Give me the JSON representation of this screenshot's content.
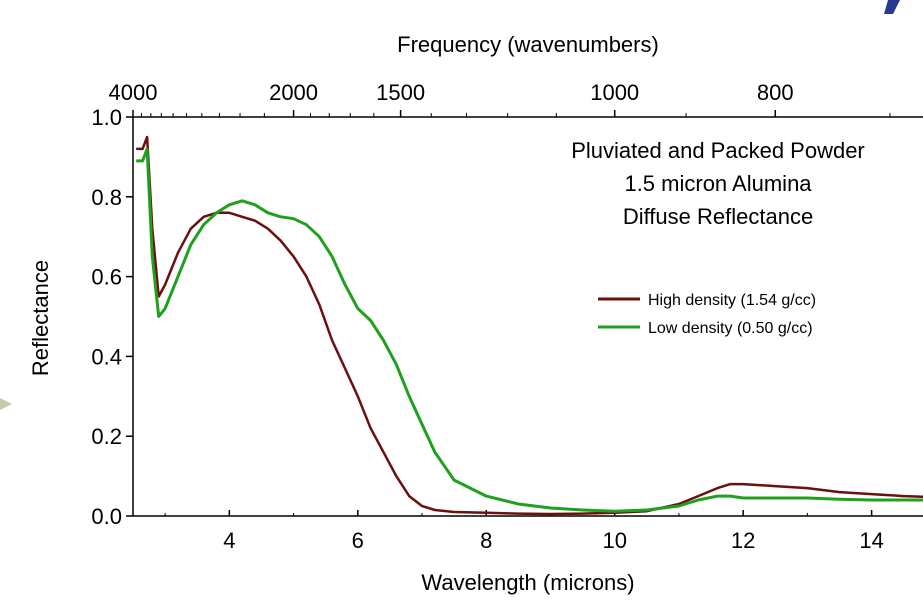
{
  "chart_data": {
    "type": "line",
    "annotation_lines": [
      "Pluviated and Packed Powder",
      "1.5 micron Alumina",
      "Diffuse Reflectance"
    ],
    "xlabel": "Wavelength (microns)",
    "ylabel": "Reflectance",
    "top_axis_label": "Frequency (wavenumbers)",
    "xlim": [
      2.5,
      14.8
    ],
    "ylim": [
      0.0,
      1.0
    ],
    "x_ticks": [
      4,
      6,
      8,
      10,
      12,
      14
    ],
    "x_tick_labels": [
      "4",
      "6",
      "8",
      "10",
      "12",
      "14"
    ],
    "y_ticks": [
      0.0,
      0.2,
      0.4,
      0.6,
      0.8,
      1.0
    ],
    "y_tick_labels": [
      "0.0",
      "0.2",
      "0.4",
      "0.6",
      "0.8",
      "1.0"
    ],
    "top_ticks_wavenumbers": [
      4000,
      2000,
      1500,
      1000,
      800
    ],
    "top_tick_labels": [
      "4000",
      "2000",
      "1500",
      "1000",
      "800"
    ],
    "grid": false,
    "legend_position": "right",
    "series": [
      {
        "name": "High density (1.54 g/cc)",
        "color": "#6b0f0f",
        "x": [
          2.55,
          2.65,
          2.72,
          2.8,
          2.9,
          3.0,
          3.2,
          3.4,
          3.6,
          3.8,
          4.0,
          4.2,
          4.4,
          4.6,
          4.8,
          5.0,
          5.2,
          5.4,
          5.6,
          5.8,
          6.0,
          6.2,
          6.4,
          6.6,
          6.8,
          7.0,
          7.2,
          7.5,
          8.0,
          8.5,
          9.0,
          9.5,
          10.0,
          10.5,
          11.0,
          11.3,
          11.6,
          11.8,
          12.0,
          12.5,
          13.0,
          13.5,
          14.0,
          14.5,
          14.8
        ],
        "y": [
          0.92,
          0.92,
          0.95,
          0.72,
          0.55,
          0.58,
          0.66,
          0.72,
          0.75,
          0.76,
          0.76,
          0.75,
          0.74,
          0.72,
          0.69,
          0.65,
          0.6,
          0.53,
          0.44,
          0.37,
          0.3,
          0.22,
          0.16,
          0.1,
          0.05,
          0.025,
          0.015,
          0.01,
          0.008,
          0.006,
          0.005,
          0.006,
          0.008,
          0.012,
          0.03,
          0.05,
          0.07,
          0.08,
          0.08,
          0.075,
          0.07,
          0.06,
          0.055,
          0.05,
          0.048
        ]
      },
      {
        "name": "Low density (0.50 g/cc)",
        "color": "#1fa01f",
        "x": [
          2.55,
          2.65,
          2.72,
          2.8,
          2.9,
          3.0,
          3.2,
          3.4,
          3.6,
          3.8,
          4.0,
          4.2,
          4.4,
          4.6,
          4.8,
          5.0,
          5.2,
          5.4,
          5.6,
          5.8,
          6.0,
          6.2,
          6.4,
          6.6,
          6.8,
          7.0,
          7.2,
          7.5,
          8.0,
          8.5,
          9.0,
          9.5,
          10.0,
          10.5,
          11.0,
          11.3,
          11.6,
          11.8,
          12.0,
          12.5,
          13.0,
          13.5,
          14.0,
          14.5,
          14.8
        ],
        "y": [
          0.89,
          0.89,
          0.92,
          0.65,
          0.5,
          0.52,
          0.6,
          0.68,
          0.73,
          0.76,
          0.78,
          0.79,
          0.78,
          0.76,
          0.75,
          0.745,
          0.73,
          0.7,
          0.65,
          0.58,
          0.52,
          0.49,
          0.44,
          0.38,
          0.3,
          0.23,
          0.16,
          0.09,
          0.05,
          0.03,
          0.02,
          0.015,
          0.012,
          0.015,
          0.025,
          0.04,
          0.05,
          0.05,
          0.045,
          0.045,
          0.045,
          0.042,
          0.04,
          0.04,
          0.04
        ]
      }
    ]
  }
}
